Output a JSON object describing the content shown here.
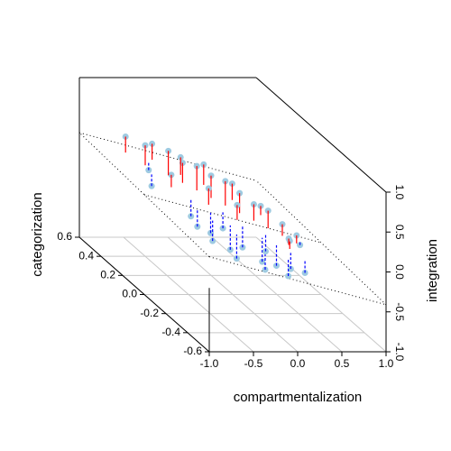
{
  "chart_data": {
    "type": "scatter3d",
    "x_label": "compartmentalization",
    "y_label": "categorization",
    "z_label": "integration",
    "xlim": [
      -1,
      1
    ],
    "ylim": [
      -0.6,
      0.6
    ],
    "zlim": [
      -1,
      1
    ],
    "xticks": [
      {
        "value": -1,
        "label": "-1.0"
      },
      -0.5,
      {
        "value": 0,
        "label": "0.0"
      },
      0.5,
      {
        "value": 1,
        "label": "1.0"
      }
    ],
    "yticks": [
      -0.6,
      -0.4,
      -0.2,
      {
        "value": 0,
        "label": "0.0"
      },
      0.2,
      0.4,
      0.6
    ],
    "zticks": [
      {
        "value": -1,
        "label": "-1.0"
      },
      -0.5,
      {
        "value": 0,
        "label": "0.0"
      },
      0.5,
      {
        "value": 1,
        "label": "1.0"
      }
    ],
    "plane": {
      "intercept": -0.05,
      "x": -0.3,
      "y": 0.1
    },
    "point_color": "#9ecae1",
    "positive_residual_color": "#ff0000",
    "negative_residual_color": "#0000ff",
    "grid": true,
    "x": [
      -0.6,
      -0.5,
      -0.4,
      -0.45,
      -0.3,
      -0.35,
      -0.2,
      -0.25,
      -0.1,
      -0.15,
      0,
      -0.05,
      0.1,
      0.05,
      0.2,
      0.15,
      0.3,
      0.25,
      0.4,
      0.35,
      0.5,
      0.45,
      0.6,
      0.7,
      -0.55,
      -0.3,
      -0.1,
      0.1,
      0.3,
      0.5,
      -0.4,
      -0.2,
      0,
      0.2,
      0.4,
      -0.15,
      0.05,
      0.25,
      0.45,
      -0.35
    ],
    "y": [
      0.5,
      0.4,
      0.45,
      0.2,
      0.35,
      0.1,
      0.3,
      0,
      0.25,
      -0.1,
      0.2,
      0.05,
      0.15,
      -0.05,
      0.1,
      -0.15,
      0.05,
      -0.2,
      0,
      -0.25,
      -0.05,
      -0.3,
      -0.1,
      -0.05,
      0.3,
      0.5,
      0.4,
      0.35,
      0.25,
      0.15,
      0,
      -0.2,
      -0.3,
      -0.35,
      -0.2,
      0.1,
      0,
      -0.1,
      -0.15,
      -0.1
    ],
    "z": [
      0.38,
      0.39,
      0.02,
      0.26,
      0.38,
      -0.14,
      0.29,
      -0.23,
      0.31,
      -0.32,
      0.25,
      -0.23,
      0.24,
      -0.35,
      0.15,
      -0.41,
      0.07,
      -0.4,
      0.05,
      -0.38,
      -0.06,
      -0.37,
      -0.14,
      -0.32,
      0,
      0.29,
      0.24,
      0.21,
      0.09,
      -0.07,
      -0.15,
      -0.31,
      -0.33,
      -0.35,
      -0.09,
      0.21,
      0.12,
      -0.34,
      -0.12,
      -0.21
    ]
  }
}
